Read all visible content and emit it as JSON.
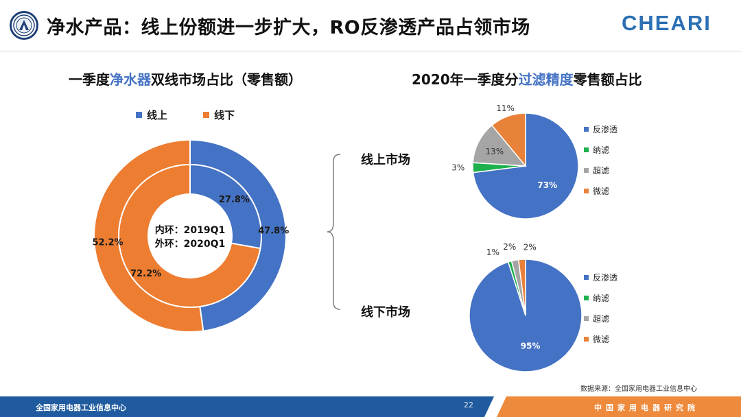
{
  "header": {
    "title": "净水产品：线上份额进一步扩大，RO反渗透产品占领市场",
    "brand": "CHEARI"
  },
  "left_chart": {
    "title_prefix": "一季度",
    "title_highlight": "净水器",
    "title_suffix": "双线市场占比（零售额）",
    "legend": [
      "线上",
      "线下"
    ],
    "center_line1": "内环：2019Q1",
    "center_line2": "外环：2020Q1"
  },
  "right_chart": {
    "title_prefix": "2020年一季度分",
    "title_highlight": "过滤精度",
    "title_suffix": "零售额占比",
    "online_label": "线上市场",
    "offline_label": "线下市场",
    "legend": [
      "反渗透",
      "纳滤",
      "超滤",
      "微滤"
    ]
  },
  "source": "数据来源：全国家用电器工业信息中心",
  "footer": {
    "left": "全国家用电器工业信息中心",
    "page": "22",
    "right": "中国家用电器研究院"
  },
  "colors": {
    "blue": "#4472c4",
    "orange": "#ed7d31",
    "green": "#1fb04e",
    "gray": "#a5a5a5",
    "pie_orange": "#e8823a",
    "footer_blue": "#1f5b9e",
    "footer_orange": "#ee8a3c"
  },
  "chart_data": [
    {
      "type": "pie",
      "subtype": "donut",
      "categories": [
        "线上",
        "线下"
      ],
      "series": [
        {
          "name": "内环：2019Q1",
          "values": [
            27.8,
            72.2
          ],
          "labels": [
            "27.8%",
            "72.2%"
          ]
        },
        {
          "name": "外环：2020Q1",
          "values": [
            47.8,
            52.2
          ],
          "labels": [
            "47.8%",
            "52.2%"
          ]
        }
      ]
    },
    {
      "type": "pie",
      "categories": [
        "反渗透",
        "纳滤",
        "超滤",
        "微滤"
      ],
      "values": [
        73,
        3,
        13,
        11
      ],
      "labels": [
        "73%",
        "3%",
        "13%",
        "11%"
      ]
    },
    {
      "type": "pie",
      "categories": [
        "反渗透",
        "纳滤",
        "超滤",
        "微滤"
      ],
      "values": [
        95,
        1,
        2,
        2
      ],
      "labels": [
        "95%",
        "1%",
        "2%",
        "2%"
      ]
    }
  ]
}
